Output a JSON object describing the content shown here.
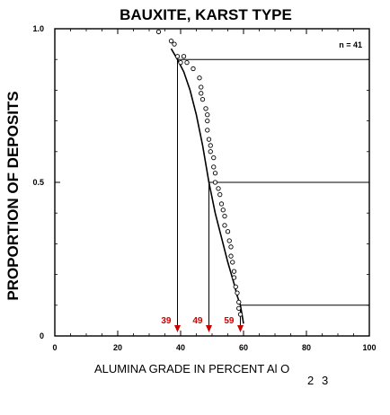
{
  "chart_data": {
    "type": "scatter",
    "title": "BAUXITE, KARST TYPE",
    "xlabel_main": "ALUMINA GRADE IN PERCENT Al O",
    "xlabel_subscripts": [
      "2",
      "3"
    ],
    "ylabel": "PROPORTION OF DEPOSITS",
    "xlim": [
      0,
      100
    ],
    "ylim": [
      0,
      1.0
    ],
    "x_ticks": [
      0,
      20,
      40,
      60,
      80,
      100
    ],
    "y_ticks": [
      0,
      0.5,
      1.0
    ],
    "y_tick_labels": [
      "0",
      "0.5",
      "1.0"
    ],
    "n_label": "n = 41",
    "observed_points": [
      {
        "x": 33,
        "y": 0.99
      },
      {
        "x": 37,
        "y": 0.96
      },
      {
        "x": 38,
        "y": 0.95
      },
      {
        "x": 39,
        "y": 0.91
      },
      {
        "x": 40,
        "y": 0.89
      },
      {
        "x": 41,
        "y": 0.91
      },
      {
        "x": 42,
        "y": 0.89
      },
      {
        "x": 44,
        "y": 0.87
      },
      {
        "x": 46,
        "y": 0.84
      },
      {
        "x": 46.5,
        "y": 0.81
      },
      {
        "x": 46.5,
        "y": 0.79
      },
      {
        "x": 47,
        "y": 0.77
      },
      {
        "x": 48,
        "y": 0.74
      },
      {
        "x": 48.5,
        "y": 0.72
      },
      {
        "x": 48.5,
        "y": 0.7
      },
      {
        "x": 48.5,
        "y": 0.67
      },
      {
        "x": 49,
        "y": 0.64
      },
      {
        "x": 49.5,
        "y": 0.62
      },
      {
        "x": 49.5,
        "y": 0.6
      },
      {
        "x": 50.5,
        "y": 0.58
      },
      {
        "x": 50.5,
        "y": 0.55
      },
      {
        "x": 51,
        "y": 0.53
      },
      {
        "x": 51,
        "y": 0.5
      },
      {
        "x": 52,
        "y": 0.48
      },
      {
        "x": 52.5,
        "y": 0.46
      },
      {
        "x": 53,
        "y": 0.43
      },
      {
        "x": 53.5,
        "y": 0.41
      },
      {
        "x": 54,
        "y": 0.39
      },
      {
        "x": 54,
        "y": 0.36
      },
      {
        "x": 55,
        "y": 0.34
      },
      {
        "x": 55.5,
        "y": 0.31
      },
      {
        "x": 56,
        "y": 0.29
      },
      {
        "x": 56,
        "y": 0.26
      },
      {
        "x": 56.5,
        "y": 0.24
      },
      {
        "x": 57,
        "y": 0.21
      },
      {
        "x": 57,
        "y": 0.19
      },
      {
        "x": 57.5,
        "y": 0.16
      },
      {
        "x": 58,
        "y": 0.14
      },
      {
        "x": 58.5,
        "y": 0.11
      },
      {
        "x": 58.5,
        "y": 0.09
      },
      {
        "x": 59,
        "y": 0.07
      }
    ],
    "fitted_curve": [
      {
        "x": 37,
        "y": 0.935
      },
      {
        "x": 39,
        "y": 0.9
      },
      {
        "x": 41,
        "y": 0.86
      },
      {
        "x": 43,
        "y": 0.8
      },
      {
        "x": 45,
        "y": 0.72
      },
      {
        "x": 47,
        "y": 0.62
      },
      {
        "x": 49,
        "y": 0.5
      },
      {
        "x": 51,
        "y": 0.4
      },
      {
        "x": 53,
        "y": 0.32
      },
      {
        "x": 55,
        "y": 0.24
      },
      {
        "x": 57,
        "y": 0.17
      },
      {
        "x": 58,
        "y": 0.13
      },
      {
        "x": 59,
        "y": 0.1
      },
      {
        "x": 59.5,
        "y": 0.07
      },
      {
        "x": 60,
        "y": 0.04
      }
    ],
    "percentile_lines": [
      {
        "proportion": 0.9,
        "x": 39,
        "label": "39"
      },
      {
        "proportion": 0.5,
        "x": 49,
        "label": "49"
      },
      {
        "proportion": 0.1,
        "x": 59,
        "label": "59"
      }
    ],
    "colors": {
      "axes": "#000000",
      "markers": "#000000",
      "percentile_labels": "#cc0000"
    }
  }
}
